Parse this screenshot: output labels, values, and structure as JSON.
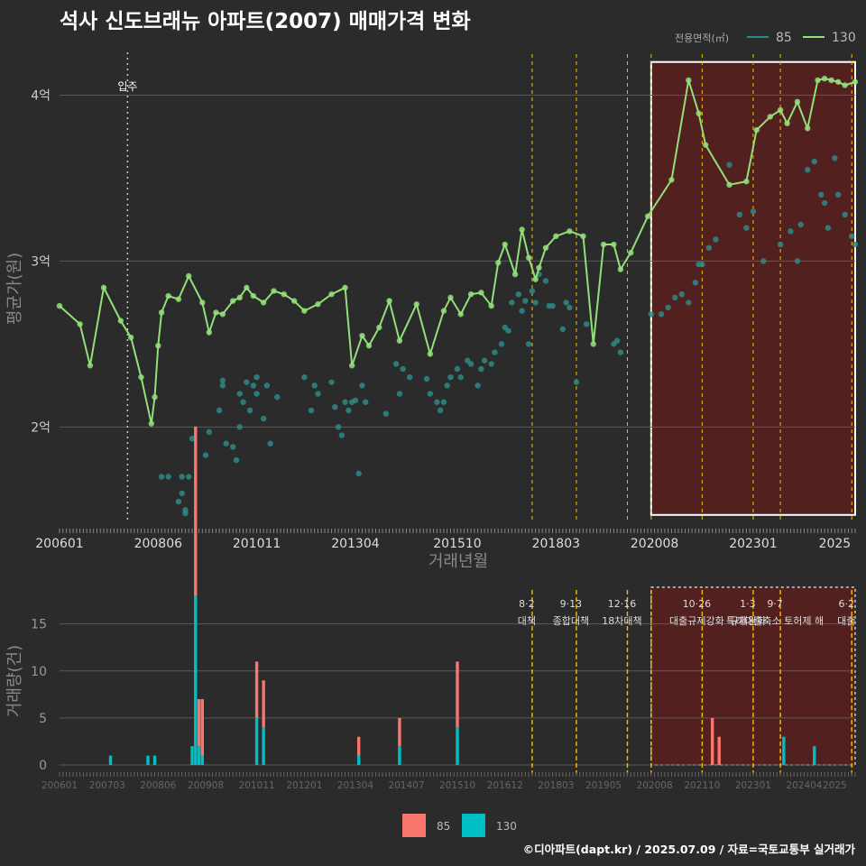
{
  "title": "석사 신도브래뉴 아파트(2007) 매매가격 변화",
  "credit": "©디아파트(dapt.kr) / 2025.07.09 / 자료=국토교통부 실거래가",
  "legend_title": "전용면적(㎡)",
  "series_names": [
    "85",
    "130"
  ],
  "colors": {
    "s85": "#2e8a86",
    "s130": "#93e07a",
    "bar85": "#f8766d",
    "bar130": "#00bfc4",
    "policy": "#f0c000",
    "zone": "#5a1f1f"
  },
  "chart_data": [
    {
      "type": "line",
      "title": "석사 신도브래뉴 아파트(2007) 매매가격 변화",
      "xlabel": "거래년월",
      "ylabel": "평균가(원)",
      "x_tick_labels": [
        "200601",
        "200806",
        "201011",
        "201304",
        "201510",
        "201803",
        "202008",
        "202301",
        "2025"
      ],
      "y_tick_labels": [
        "2억",
        "3억",
        "4억"
      ],
      "y_ticks": [
        2.0,
        3.0,
        4.0
      ],
      "ylim": [
        1.42,
        4.28
      ],
      "move_in_label": "입주",
      "move_in": "2007-09",
      "legend_position": "top-right",
      "series": [
        {
          "name": "85",
          "points": [
            [
              "2008-07",
              1.7
            ],
            [
              "2008-09",
              1.7
            ],
            [
              "2008-12",
              1.55
            ],
            [
              "2009-01",
              1.7
            ],
            [
              "2009-01",
              1.6
            ],
            [
              "2009-02",
              1.5
            ],
            [
              "2009-02",
              1.48
            ],
            [
              "2009-03",
              1.7
            ],
            [
              "2009-04",
              1.93
            ],
            [
              "2009-08",
              1.83
            ],
            [
              "2009-09",
              1.97
            ],
            [
              "2009-12",
              2.1
            ],
            [
              "2010-01",
              2.28
            ],
            [
              "2010-01",
              2.25
            ],
            [
              "2010-02",
              1.9
            ],
            [
              "2010-04",
              1.88
            ],
            [
              "2010-05",
              1.8
            ],
            [
              "2010-06",
              2.0
            ],
            [
              "2010-06",
              2.2
            ],
            [
              "2010-07",
              2.15
            ],
            [
              "2010-08",
              2.27
            ],
            [
              "2010-09",
              2.1
            ],
            [
              "2010-10",
              2.25
            ],
            [
              "2010-11",
              2.3
            ],
            [
              "2010-11",
              2.2
            ],
            [
              "2011-01",
              2.05
            ],
            [
              "2011-02",
              2.25
            ],
            [
              "2011-03",
              1.9
            ],
            [
              "2011-05",
              2.18
            ],
            [
              "2012-01",
              2.3
            ],
            [
              "2012-03",
              2.1
            ],
            [
              "2012-04",
              2.25
            ],
            [
              "2012-05",
              2.2
            ],
            [
              "2012-09",
              2.27
            ],
            [
              "2012-10",
              2.12
            ],
            [
              "2012-11",
              2.0
            ],
            [
              "2012-12",
              1.95
            ],
            [
              "2013-01",
              2.15
            ],
            [
              "2013-02",
              2.1
            ],
            [
              "2013-03",
              2.15
            ],
            [
              "2013-04",
              2.16
            ],
            [
              "2013-05",
              1.72
            ],
            [
              "2013-06",
              2.25
            ],
            [
              "2013-07",
              2.15
            ],
            [
              "2014-01",
              2.08
            ],
            [
              "2014-04",
              2.38
            ],
            [
              "2014-05",
              2.2
            ],
            [
              "2014-06",
              2.35
            ],
            [
              "2014-08",
              2.3
            ],
            [
              "2015-01",
              2.29
            ],
            [
              "2015-02",
              2.2
            ],
            [
              "2015-04",
              2.15
            ],
            [
              "2015-05",
              2.1
            ],
            [
              "2015-06",
              2.15
            ],
            [
              "2015-07",
              2.25
            ],
            [
              "2015-08",
              2.3
            ],
            [
              "2015-10",
              2.35
            ],
            [
              "2015-11",
              2.3
            ],
            [
              "2016-01",
              2.4
            ],
            [
              "2016-02",
              2.38
            ],
            [
              "2016-04",
              2.25
            ],
            [
              "2016-05",
              2.35
            ],
            [
              "2016-06",
              2.4
            ],
            [
              "2016-08",
              2.38
            ],
            [
              "2016-09",
              2.45
            ],
            [
              "2016-11",
              2.5
            ],
            [
              "2016-12",
              2.6
            ],
            [
              "2017-01",
              2.58
            ],
            [
              "2017-02",
              2.75
            ],
            [
              "2017-04",
              2.8
            ],
            [
              "2017-05",
              2.7
            ],
            [
              "2017-06",
              2.76
            ],
            [
              "2017-07",
              2.5
            ],
            [
              "2017-08",
              2.82
            ],
            [
              "2017-09",
              2.75
            ],
            [
              "2017-10",
              2.92
            ],
            [
              "2017-12",
              2.88
            ],
            [
              "2018-01",
              2.73
            ],
            [
              "2018-02",
              2.73
            ],
            [
              "2018-05",
              2.59
            ],
            [
              "2018-06",
              2.75
            ],
            [
              "2018-07",
              2.72
            ],
            [
              "2018-09",
              2.27
            ],
            [
              "2018-12",
              2.62
            ],
            [
              "2019-08",
              2.5
            ],
            [
              "2019-09",
              2.52
            ],
            [
              "2019-10",
              2.45
            ],
            [
              "2020-07",
              2.68
            ],
            [
              "2020-10",
              2.68
            ],
            [
              "2020-12",
              2.72
            ],
            [
              "2021-02",
              2.78
            ],
            [
              "2021-04",
              2.8
            ],
            [
              "2021-06",
              2.75
            ],
            [
              "2021-08",
              2.87
            ],
            [
              "2021-09",
              2.98
            ],
            [
              "2021-10",
              2.98
            ],
            [
              "2021-12",
              3.08
            ],
            [
              "2022-02",
              3.13
            ],
            [
              "2022-06",
              3.58
            ],
            [
              "2022-09",
              3.28
            ],
            [
              "2022-11",
              3.2
            ],
            [
              "2023-01",
              3.3
            ],
            [
              "2023-04",
              3.0
            ],
            [
              "2023-09",
              3.1
            ],
            [
              "2023-12",
              3.18
            ],
            [
              "2024-02",
              3.0
            ],
            [
              "2024-03",
              3.22
            ],
            [
              "2024-05",
              3.55
            ],
            [
              "2024-07",
              3.6
            ],
            [
              "2024-09",
              3.4
            ],
            [
              "2024-10",
              3.35
            ],
            [
              "2024-11",
              3.2
            ],
            [
              "2025-01",
              3.62
            ],
            [
              "2025-02",
              3.4
            ],
            [
              "2025-04",
              3.28
            ],
            [
              "2025-06",
              3.15
            ],
            [
              "2025-07",
              3.1
            ]
          ]
        },
        {
          "name": "130",
          "points": [
            [
              "2006-01",
              2.73
            ],
            [
              "2006-07",
              2.62
            ],
            [
              "2006-10",
              2.37
            ],
            [
              "2007-02",
              2.84
            ],
            [
              "2007-07",
              2.64
            ],
            [
              "2007-10",
              2.54
            ],
            [
              "2008-01",
              2.3
            ],
            [
              "2008-04",
              2.02
            ],
            [
              "2008-05",
              2.18
            ],
            [
              "2008-06",
              2.49
            ],
            [
              "2008-07",
              2.69
            ],
            [
              "2008-09",
              2.79
            ],
            [
              "2008-12",
              2.77
            ],
            [
              "2009-03",
              2.91
            ],
            [
              "2009-07",
              2.75
            ],
            [
              "2009-09",
              2.57
            ],
            [
              "2009-11",
              2.69
            ],
            [
              "2010-01",
              2.68
            ],
            [
              "2010-04",
              2.76
            ],
            [
              "2010-06",
              2.78
            ],
            [
              "2010-08",
              2.84
            ],
            [
              "2010-10",
              2.79
            ],
            [
              "2011-01",
              2.75
            ],
            [
              "2011-04",
              2.82
            ],
            [
              "2011-07",
              2.8
            ],
            [
              "2011-10",
              2.76
            ],
            [
              "2012-01",
              2.7
            ],
            [
              "2012-05",
              2.74
            ],
            [
              "2012-09",
              2.8
            ],
            [
              "2013-01",
              2.84
            ],
            [
              "2013-03",
              2.37
            ],
            [
              "2013-06",
              2.55
            ],
            [
              "2013-08",
              2.49
            ],
            [
              "2013-11",
              2.6
            ],
            [
              "2014-02",
              2.76
            ],
            [
              "2014-05",
              2.52
            ],
            [
              "2014-10",
              2.74
            ],
            [
              "2015-02",
              2.44
            ],
            [
              "2015-06",
              2.7
            ],
            [
              "2015-08",
              2.78
            ],
            [
              "2015-11",
              2.68
            ],
            [
              "2016-02",
              2.8
            ],
            [
              "2016-05",
              2.81
            ],
            [
              "2016-08",
              2.73
            ],
            [
              "2016-10",
              2.99
            ],
            [
              "2016-12",
              3.1
            ],
            [
              "2017-03",
              2.92
            ],
            [
              "2017-05",
              3.19
            ],
            [
              "2017-07",
              3.02
            ],
            [
              "2017-09",
              2.89
            ],
            [
              "2017-10",
              2.96
            ],
            [
              "2017-12",
              3.08
            ],
            [
              "2018-03",
              3.15
            ],
            [
              "2018-07",
              3.18
            ],
            [
              "2018-11",
              3.15
            ],
            [
              "2019-02",
              2.5
            ],
            [
              "2019-05",
              3.1
            ],
            [
              "2019-08",
              3.1
            ],
            [
              "2019-10",
              2.95
            ],
            [
              "2020-01",
              3.05
            ],
            [
              "2020-06",
              3.27
            ],
            [
              "2021-01",
              3.49
            ],
            [
              "2021-06",
              4.09
            ],
            [
              "2021-09",
              3.89
            ],
            [
              "2021-11",
              3.7
            ],
            [
              "2022-06",
              3.46
            ],
            [
              "2022-11",
              3.48
            ],
            [
              "2023-02",
              3.79
            ],
            [
              "2023-06",
              3.87
            ],
            [
              "2023-09",
              3.91
            ],
            [
              "2023-11",
              3.83
            ],
            [
              "2024-02",
              3.96
            ],
            [
              "2024-05",
              3.8
            ],
            [
              "2024-08",
              4.09
            ],
            [
              "2024-10",
              4.1
            ],
            [
              "2024-12",
              4.09
            ],
            [
              "2025-02",
              4.08
            ],
            [
              "2025-04",
              4.06
            ],
            [
              "2025-07",
              4.08
            ]
          ]
        }
      ]
    },
    {
      "type": "bar",
      "ylabel": "거래량(건)",
      "y_tick_labels": [
        "0",
        "5",
        "10",
        "15"
      ],
      "y_ticks": [
        0,
        5,
        10,
        15
      ],
      "ylim": [
        0,
        19
      ],
      "x_tick_labels": [
        "200601",
        "200703",
        "200806",
        "200908",
        "201011",
        "201201",
        "201304",
        "201407",
        "201510",
        "201612",
        "201803",
        "201905",
        "202008",
        "202110",
        "202301",
        "202404",
        "2025"
      ],
      "stacked": true,
      "legend_position": "bottom",
      "series": [
        {
          "name": "85",
          "bars": [
            [
              "2009-05",
              18
            ],
            [
              "2009-06",
              5
            ],
            [
              "2009-07",
              6
            ],
            [
              "2010-11",
              6
            ],
            [
              "2011-01",
              5
            ],
            [
              "2015-10",
              7
            ],
            [
              "2013-05",
              2
            ],
            [
              "2014-05",
              3
            ],
            [
              "2022-01",
              5
            ],
            [
              "2022-03",
              3
            ]
          ]
        },
        {
          "name": "130",
          "bars": [
            [
              "2007-04",
              1
            ],
            [
              "2008-03",
              1
            ],
            [
              "2008-05",
              1
            ],
            [
              "2009-04",
              2
            ],
            [
              "2009-05",
              18
            ],
            [
              "2009-06",
              2
            ],
            [
              "2009-07",
              1
            ],
            [
              "2010-11",
              5
            ],
            [
              "2011-01",
              4
            ],
            [
              "2015-10",
              4
            ],
            [
              "2013-05",
              1
            ],
            [
              "2014-05",
              2
            ],
            [
              "2023-10",
              3
            ],
            [
              "2024-07",
              2
            ]
          ]
        }
      ],
      "policies": [
        {
          "date": "2017-08",
          "date_label": "8·2",
          "name": "대책"
        },
        {
          "date": "2018-09",
          "date_label": "9·13",
          "name": "종합대책"
        },
        {
          "date": "2019-12",
          "date_label": "12·16",
          "name": "18차대책"
        },
        {
          "date": "2020-07",
          "date_label": "",
          "name": ""
        },
        {
          "date": "2021-10",
          "date_label": "10·26",
          "name": "대출규제강화"
        },
        {
          "date": "2023-01",
          "date_label": "1·3",
          "name": "규제완화"
        },
        {
          "date": "2023-09",
          "date_label": "9·7",
          "name": "특례대출축소 토허제 해"
        },
        {
          "date": "2025-06",
          "date_label": "6·2",
          "name": "대출"
        }
      ]
    }
  ]
}
